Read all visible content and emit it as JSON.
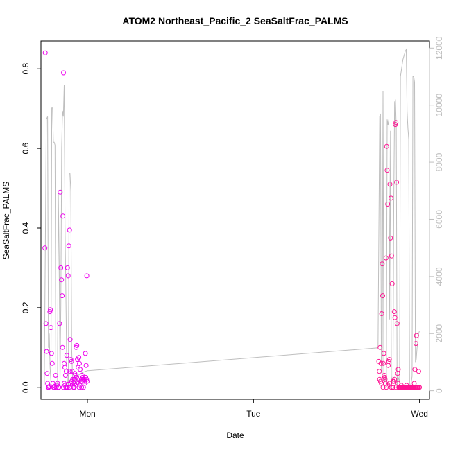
{
  "chart_data": {
    "type": "scatter",
    "title": "ATOM2 Northeast_Pacific_2 SeaSaltFrac_PALMS",
    "xlabel": "Date",
    "ylabel": "SeaSaltFrac_PALMS",
    "x_unit": "day",
    "x_ticks": [
      {
        "label": "Mon",
        "value": 0
      },
      {
        "label": "Tue",
        "value": 1
      },
      {
        "label": "Wed",
        "value": 2
      }
    ],
    "xlim": [
      -0.28,
      2.06
    ],
    "ylim": [
      -0.03,
      0.87
    ],
    "y_ticks": [
      0.0,
      0.2,
      0.4,
      0.6,
      0.8
    ],
    "y2lim": [
      -300,
      12250
    ],
    "y2_ticks": [
      0,
      2000,
      4000,
      6000,
      8000,
      10000,
      12000
    ],
    "grid": false,
    "colors": {
      "points_early": "#ee00ee",
      "points_late": "#ff1493",
      "line": "#bebebe",
      "axis": "#000000",
      "axis2": "#bebebe"
    },
    "series": [
      {
        "role": "line",
        "axis": "right",
        "x": [
          -0.26,
          -0.255,
          -0.248,
          -0.24,
          -0.235,
          -0.23,
          -0.225,
          -0.22,
          -0.215,
          -0.21,
          -0.205,
          -0.2,
          -0.195,
          -0.19,
          -0.185,
          -0.18,
          -0.175,
          -0.17,
          -0.165,
          -0.16,
          -0.155,
          -0.15,
          -0.145,
          -0.14,
          -0.135,
          -0.13,
          -0.125,
          -0.12,
          -0.115,
          -0.11,
          -0.105,
          -0.1,
          -0.095,
          -0.09,
          -0.085,
          -0.08,
          -0.075,
          -0.07,
          -0.065,
          -0.06,
          -0.055,
          -0.05,
          -0.045,
          -0.04,
          -0.035,
          -0.03,
          -0.025,
          -0.02,
          -0.015,
          -0.01,
          -0.005,
          0.0,
          1.75,
          1.76,
          1.765,
          1.77,
          1.775,
          1.78,
          1.785,
          1.79,
          1.795,
          1.8,
          1.805,
          1.81,
          1.815,
          1.82,
          1.825,
          1.83,
          1.835,
          1.84,
          1.845,
          1.85,
          1.855,
          1.86,
          1.865,
          1.87,
          1.875,
          1.88,
          1.885,
          1.89,
          1.895,
          1.9,
          1.905,
          1.91,
          1.915,
          1.92,
          1.925,
          1.93,
          1.935,
          1.94,
          1.945,
          1.95,
          1.955,
          1.96,
          1.965,
          1.97,
          1.975,
          1.98,
          1.985,
          1.99,
          1.995,
          2.0
        ],
        "values": [
          200,
          4000,
          9500,
          9600,
          1500,
          2000,
          800,
          300,
          9900,
          9900,
          8700,
          8700,
          8600,
          300,
          100,
          200,
          6900,
          4500,
          300,
          3000,
          8500,
          9800,
          9600,
          10700,
          5800,
          3500,
          1000,
          300,
          200,
          7600,
          7600,
          7000,
          1500,
          500,
          300,
          200,
          300,
          450,
          500,
          520,
          540,
          560,
          580,
          600,
          620,
          640,
          650,
          660,
          670,
          680,
          690,
          700,
          1500,
          9600,
          9700,
          800,
          500,
          10500,
          500,
          300,
          500,
          200,
          9500,
          9300,
          9500,
          2500,
          9100,
          500,
          300,
          500,
          6500,
          10100,
          10200,
          9200,
          200,
          500,
          400,
          300,
          11000,
          11200,
          11400,
          11600,
          11700,
          11800,
          11900,
          11950,
          9800,
          9200,
          8800,
          200,
          150,
          300,
          500,
          11000,
          11000,
          10800,
          1000,
          1100,
          1500,
          1700,
          2000,
          2100
        ]
      },
      {
        "role": "points",
        "axis": "left",
        "x": [
          -0.256,
          -0.254,
          -0.25,
          -0.246,
          -0.243,
          -0.24,
          -0.236,
          -0.233,
          -0.23,
          -0.226,
          -0.223,
          -0.22,
          -0.216,
          -0.212,
          -0.208,
          -0.204,
          -0.2,
          -0.196,
          -0.192,
          -0.188,
          -0.184,
          -0.18,
          -0.176,
          -0.172,
          -0.168,
          -0.164,
          -0.16,
          -0.156,
          -0.152,
          -0.148,
          -0.144,
          -0.14,
          -0.136,
          -0.132,
          -0.128,
          -0.124,
          -0.12,
          -0.116,
          -0.112,
          -0.108,
          -0.104,
          -0.1,
          -0.096,
          -0.092,
          -0.088,
          -0.084,
          -0.08,
          -0.076,
          -0.072,
          -0.068,
          -0.064,
          -0.06,
          -0.056,
          -0.052,
          -0.048,
          -0.044,
          -0.04,
          -0.036,
          -0.032,
          -0.028,
          -0.024,
          -0.02,
          -0.016,
          -0.012,
          -0.008,
          -0.004,
          -0.002,
          -0.15,
          -0.13,
          -0.12,
          -0.11,
          -0.1,
          -0.09,
          -0.08,
          -0.07,
          -0.06,
          -0.05,
          -0.03,
          -0.01,
          -0.14,
          -0.145,
          -0.135,
          -0.125,
          -0.115,
          -0.105,
          -0.095,
          -0.085,
          -0.075,
          -0.065,
          -0.055,
          -0.045,
          -0.035,
          -0.025,
          -0.015,
          -0.005
        ],
        "values": [
          0.35,
          0.84,
          0.16,
          0.09,
          0.035,
          0.01,
          0.0,
          0.0,
          0.002,
          0.19,
          0.195,
          0.15,
          0.085,
          0.06,
          0.01,
          0.0,
          0.0,
          0.003,
          0.03,
          0.0,
          0.005,
          0.01,
          0.0,
          0.0,
          0.16,
          0.49,
          0.3,
          0.27,
          0.23,
          0.43,
          0.79,
          0.06,
          0.05,
          0.03,
          0.04,
          0.08,
          0.3,
          0.28,
          0.355,
          0.395,
          0.12,
          0.07,
          0.065,
          0.04,
          0.02,
          0.0,
          0.0,
          0.035,
          0.005,
          0.1,
          0.105,
          0.07,
          0.05,
          0.075,
          0.06,
          0.045,
          0.015,
          0.02,
          0.03,
          0.025,
          0.0,
          0.02,
          0.01,
          0.085,
          0.055,
          0.28,
          0.015,
          0.1,
          0.0,
          0.0,
          0.0,
          0.01,
          0.005,
          0.02,
          0.03,
          0.012,
          0.0,
          0.015,
          0.025,
          0.01,
          0.0,
          0.005,
          0.0,
          0.008,
          0.04,
          0.015,
          0.012,
          0.02,
          0.025,
          0.01,
          0.005,
          0.0,
          0.02,
          0.015,
          0.02
        ]
      },
      {
        "role": "points",
        "axis": "left",
        "x": [
          1.755,
          1.758,
          1.762,
          1.765,
          1.768,
          1.772,
          1.775,
          1.778,
          1.782,
          1.785,
          1.788,
          1.792,
          1.795,
          1.798,
          1.802,
          1.805,
          1.808,
          1.812,
          1.815,
          1.818,
          1.822,
          1.825,
          1.828,
          1.832,
          1.835,
          1.838,
          1.842,
          1.845,
          1.848,
          1.852,
          1.855,
          1.858,
          1.862,
          1.865,
          1.868,
          1.872,
          1.875,
          1.878,
          1.882,
          1.885,
          1.888,
          1.892,
          1.895,
          1.898,
          1.902,
          1.905,
          1.908,
          1.912,
          1.915,
          1.918,
          1.922,
          1.925,
          1.928,
          1.932,
          1.935,
          1.938,
          1.942,
          1.945,
          1.948,
          1.952,
          1.955,
          1.958,
          1.962,
          1.965,
          1.968,
          1.972,
          1.975,
          1.978,
          1.982,
          1.985,
          1.988,
          1.992,
          1.995,
          1.998,
          2.0,
          1.76,
          1.77,
          1.78,
          1.79,
          1.8,
          1.81,
          1.82,
          1.83,
          1.84,
          1.85,
          1.86,
          1.87,
          1.88,
          1.89,
          1.9,
          1.91,
          1.92,
          1.93,
          1.94,
          1.95,
          1.96,
          1.97,
          1.98,
          1.99
        ],
        "values": [
          0.065,
          0.04,
          0.1,
          0.015,
          0.06,
          0.185,
          0.31,
          0.23,
          0.06,
          0.085,
          0.03,
          0.02,
          0.01,
          0.325,
          0.605,
          0.545,
          0.46,
          0.055,
          0.065,
          0.07,
          0.51,
          0.375,
          0.475,
          0.33,
          0.26,
          0.0,
          0.0,
          0.015,
          0.19,
          0.175,
          0.66,
          0.665,
          0.515,
          0.16,
          0.035,
          0.045,
          0.0,
          0.0,
          0.0,
          0.0,
          0.0,
          0.0,
          0.0,
          0.0,
          0.0,
          0.0,
          0.0,
          0.0,
          0.0,
          0.0,
          0.005,
          0.0,
          0.0,
          0.0,
          0.0,
          0.0,
          0.0,
          0.0,
          0.0,
          0.0,
          0.0,
          0.0,
          0.0,
          0.0,
          0.01,
          0.045,
          0.0,
          0.11,
          0.13,
          0.0,
          0.0,
          0.0,
          0.04,
          0.0,
          0.0,
          0.02,
          0.01,
          0.0,
          0.025,
          0.0,
          0.005,
          0.01,
          0.0,
          0.015,
          0.02,
          0.0,
          0.01,
          0.0,
          0.005,
          0.0,
          0.0,
          0.0,
          0.0,
          0.0,
          0.0,
          0.0,
          0.0,
          0.0,
          0.0
        ]
      }
    ]
  }
}
